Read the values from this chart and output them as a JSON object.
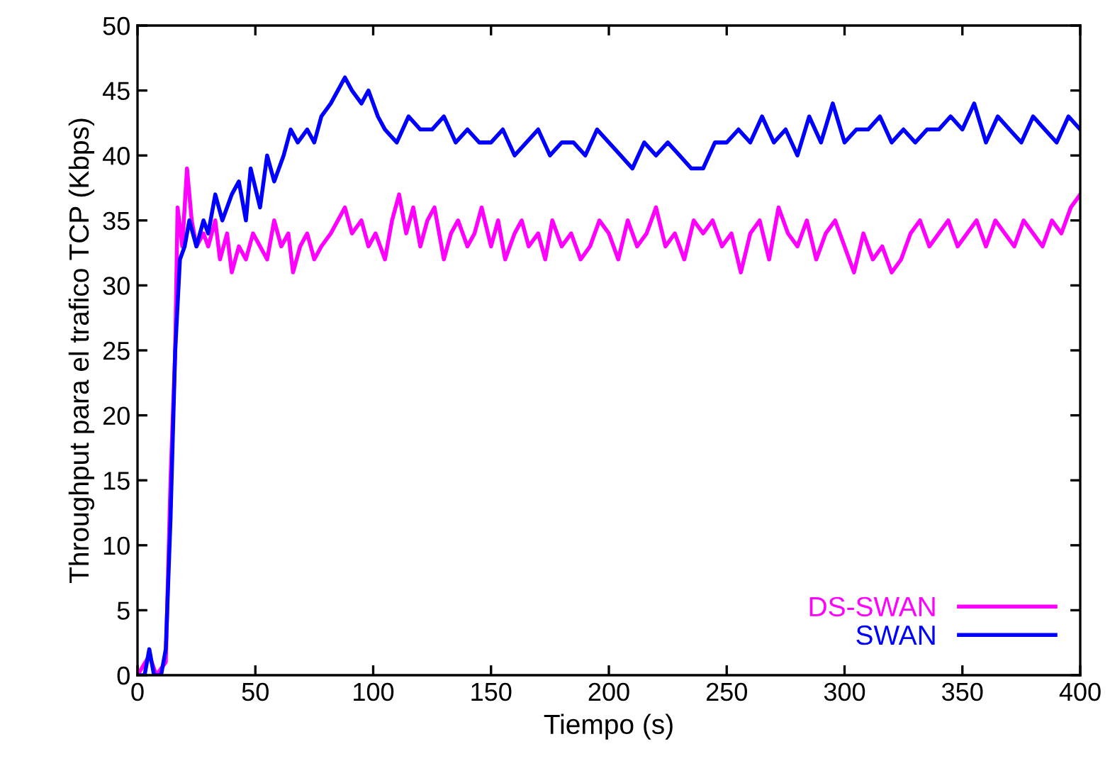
{
  "chart_data": {
    "type": "line",
    "xlabel": "Tiempo (s)",
    "ylabel": "Throughput para el trafico TCP (Kbps)",
    "xlim": [
      0,
      400
    ],
    "xticks": [
      0,
      50,
      100,
      150,
      200,
      250,
      300,
      350,
      400
    ],
    "ylim": [
      0,
      50
    ],
    "yticks": [
      0,
      5,
      10,
      15,
      20,
      25,
      30,
      35,
      40,
      45,
      50
    ],
    "grid": false,
    "legend": "bottom right",
    "marker": "none",
    "line_style": "solid",
    "series": [
      {
        "name": "DS-SWAN",
        "color": "#ff00ff",
        "x": [
          0,
          5,
          8,
          12,
          14,
          16,
          17,
          19,
          21,
          23,
          25,
          28,
          30,
          33,
          35,
          38,
          40,
          43,
          46,
          49,
          52,
          55,
          58,
          61,
          64,
          66,
          69,
          72,
          75,
          78,
          82,
          85,
          88,
          91,
          95,
          98,
          101,
          105,
          108,
          111,
          114,
          117,
          120,
          123,
          126,
          130,
          133,
          136,
          140,
          143,
          146,
          150,
          153,
          156,
          160,
          163,
          166,
          170,
          173,
          176,
          180,
          184,
          188,
          192,
          196,
          200,
          204,
          208,
          212,
          216,
          220,
          224,
          228,
          232,
          236,
          240,
          244,
          248,
          252,
          256,
          260,
          264,
          268,
          272,
          276,
          280,
          284,
          288,
          292,
          296,
          300,
          304,
          308,
          312,
          316,
          320,
          324,
          328,
          332,
          336,
          340,
          344,
          348,
          352,
          356,
          360,
          364,
          368,
          372,
          376,
          380,
          384,
          388,
          392,
          396,
          400
        ],
        "values": [
          0,
          1.5,
          0,
          1,
          15,
          25,
          36,
          33,
          39,
          35,
          33,
          34,
          33,
          35,
          32,
          34,
          31,
          33,
          32,
          34,
          33,
          32,
          35,
          33,
          34,
          31,
          33,
          34,
          32,
          33,
          34,
          35,
          36,
          34,
          35,
          33,
          34,
          32,
          35,
          37,
          34,
          36,
          33,
          35,
          36,
          32,
          34,
          35,
          33,
          34,
          36,
          33,
          35,
          32,
          34,
          35,
          33,
          34,
          32,
          35,
          33,
          34,
          32,
          33,
          35,
          34,
          32,
          35,
          33,
          34,
          36,
          33,
          34,
          32,
          35,
          34,
          35,
          33,
          34,
          31,
          34,
          35,
          32,
          36,
          34,
          33,
          35,
          32,
          34,
          35,
          33,
          31,
          34,
          32,
          33,
          31,
          32,
          34,
          35,
          33,
          34,
          35,
          33,
          34,
          35,
          33,
          35,
          34,
          33,
          35,
          34,
          33,
          35,
          34,
          36,
          37
        ]
      },
      {
        "name": "SWAN",
        "color": "#0000ff",
        "x": [
          0,
          3,
          5,
          7,
          10,
          12,
          14,
          16,
          18,
          20,
          22,
          25,
          28,
          30,
          33,
          36,
          40,
          43,
          46,
          48,
          52,
          55,
          58,
          62,
          65,
          68,
          72,
          75,
          78,
          82,
          85,
          88,
          91,
          95,
          98,
          102,
          105,
          110,
          115,
          120,
          125,
          130,
          135,
          140,
          145,
          150,
          155,
          160,
          165,
          170,
          175,
          180,
          185,
          190,
          195,
          200,
          205,
          210,
          215,
          220,
          225,
          230,
          235,
          240,
          245,
          250,
          255,
          260,
          265,
          270,
          275,
          280,
          285,
          290,
          295,
          300,
          305,
          310,
          315,
          320,
          325,
          330,
          335,
          340,
          345,
          350,
          355,
          360,
          365,
          370,
          375,
          380,
          385,
          390,
          395,
          400
        ],
        "values": [
          0,
          0,
          2,
          0,
          0,
          2,
          12,
          25,
          32,
          33,
          35,
          33,
          35,
          34,
          37,
          35,
          37,
          38,
          35,
          39,
          36,
          40,
          38,
          40,
          42,
          41,
          42,
          41,
          43,
          44,
          45,
          46,
          45,
          44,
          45,
          43,
          42,
          41,
          43,
          42,
          42,
          43,
          41,
          42,
          41,
          41,
          42,
          40,
          41,
          42,
          40,
          41,
          41,
          40,
          42,
          41,
          40,
          39,
          41,
          40,
          41,
          40,
          39,
          39,
          41,
          41,
          42,
          41,
          43,
          41,
          42,
          40,
          43,
          41,
          44,
          41,
          42,
          42,
          43,
          41,
          42,
          41,
          42,
          42,
          43,
          42,
          44,
          41,
          43,
          42,
          41,
          43,
          42,
          41,
          43,
          42
        ]
      }
    ]
  }
}
